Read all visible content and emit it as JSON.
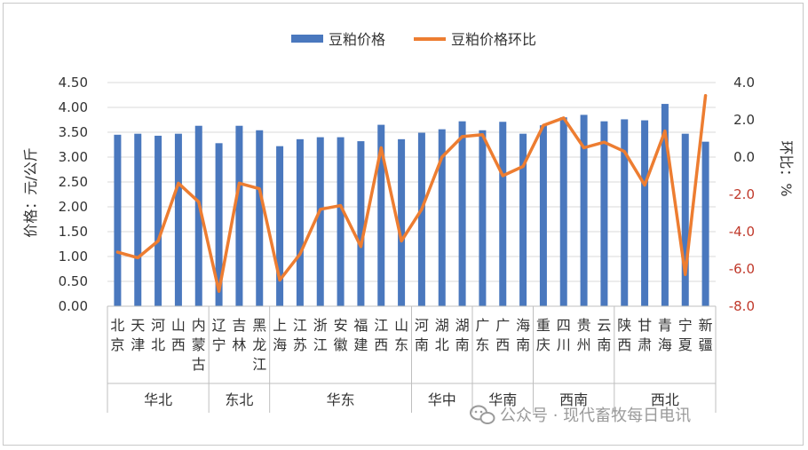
{
  "watermark": "公众号 · 现代畜牧每日电讯",
  "chart_data": {
    "type": "bar",
    "categories": [
      "北京",
      "天津",
      "河北",
      "山西",
      "内蒙古",
      "辽宁",
      "吉林",
      "黑龙江",
      "上海",
      "江苏",
      "浙江",
      "安徽",
      "福建",
      "江西",
      "山东",
      "河南",
      "湖北",
      "湖南",
      "广东",
      "广西",
      "海南",
      "重庆",
      "四川",
      "贵州",
      "云南",
      "陕西",
      "甘肃",
      "青海",
      "宁夏",
      "新疆"
    ],
    "regions": [
      {
        "name": "华北",
        "start": 0,
        "end": 4
      },
      {
        "name": "东北",
        "start": 5,
        "end": 7
      },
      {
        "name": "华东",
        "start": 8,
        "end": 14
      },
      {
        "name": "华中",
        "start": 15,
        "end": 17
      },
      {
        "name": "华南",
        "start": 18,
        "end": 20
      },
      {
        "name": "西南",
        "start": 21,
        "end": 24
      },
      {
        "name": "西北",
        "start": 25,
        "end": 29
      }
    ],
    "series": [
      {
        "name": "豆粕价格",
        "type": "bar",
        "axis": "left",
        "color": "#4a78be",
        "values": [
          3.45,
          3.47,
          3.43,
          3.47,
          3.63,
          3.28,
          3.63,
          3.54,
          3.22,
          3.36,
          3.4,
          3.4,
          3.32,
          3.65,
          3.36,
          3.49,
          3.56,
          3.72,
          3.54,
          3.71,
          3.47,
          3.64,
          3.8,
          3.85,
          3.72,
          3.76,
          3.74,
          4.07,
          3.47,
          3.31
        ]
      },
      {
        "name": "豆粕价格环比",
        "type": "line",
        "axis": "right",
        "color": "#ed7d31",
        "values": [
          -5.1,
          -5.4,
          -4.5,
          -1.4,
          -2.4,
          -7.2,
          -1.4,
          -1.7,
          -6.6,
          -5.2,
          -2.8,
          -2.6,
          -4.8,
          0.5,
          -4.5,
          -2.8,
          0.0,
          1.1,
          1.2,
          -1.0,
          -0.5,
          1.7,
          2.1,
          0.5,
          0.8,
          0.3,
          -1.5,
          1.4,
          -6.3,
          3.3
        ]
      }
    ],
    "ylabel": "价格：元/公斤",
    "y2label": "环比：%",
    "ylim": [
      0,
      4.5
    ],
    "y2lim": [
      -8.0,
      4.0
    ],
    "yticks": [
      "0.00",
      "0.50",
      "1.00",
      "1.50",
      "2.00",
      "2.50",
      "3.00",
      "3.50",
      "4.00",
      "4.50"
    ],
    "y2ticks": [
      "-8.0",
      "-6.0",
      "-4.0",
      "-2.0",
      "0.0",
      "2.0",
      "4.0"
    ],
    "grid": true,
    "legend_position": "top"
  }
}
